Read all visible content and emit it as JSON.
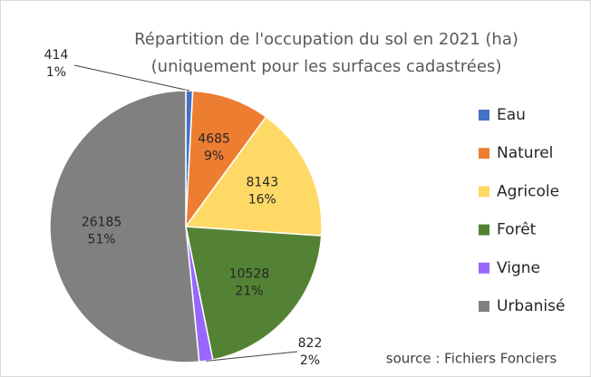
{
  "chart_data": {
    "type": "pie",
    "title": [
      "Répartition de l'occupation du sol en 2021 (ha)",
      "(uniquement pour les surfaces cadastrées)"
    ],
    "categories": [
      "Eau",
      "Naturel",
      "Agricole",
      "Forêt",
      "Vigne",
      "Urbanisé"
    ],
    "values": [
      414,
      4685,
      8143,
      10528,
      822,
      26185
    ],
    "percent_labels": [
      "1%",
      "9%",
      "16%",
      "21%",
      "2%",
      "51%"
    ],
    "colors": [
      "#4472c4",
      "#ed7d31",
      "#ffd966",
      "#548235",
      "#9966ff",
      "#808080"
    ],
    "source": "source : Fichiers Fonciers",
    "legend": "right"
  }
}
